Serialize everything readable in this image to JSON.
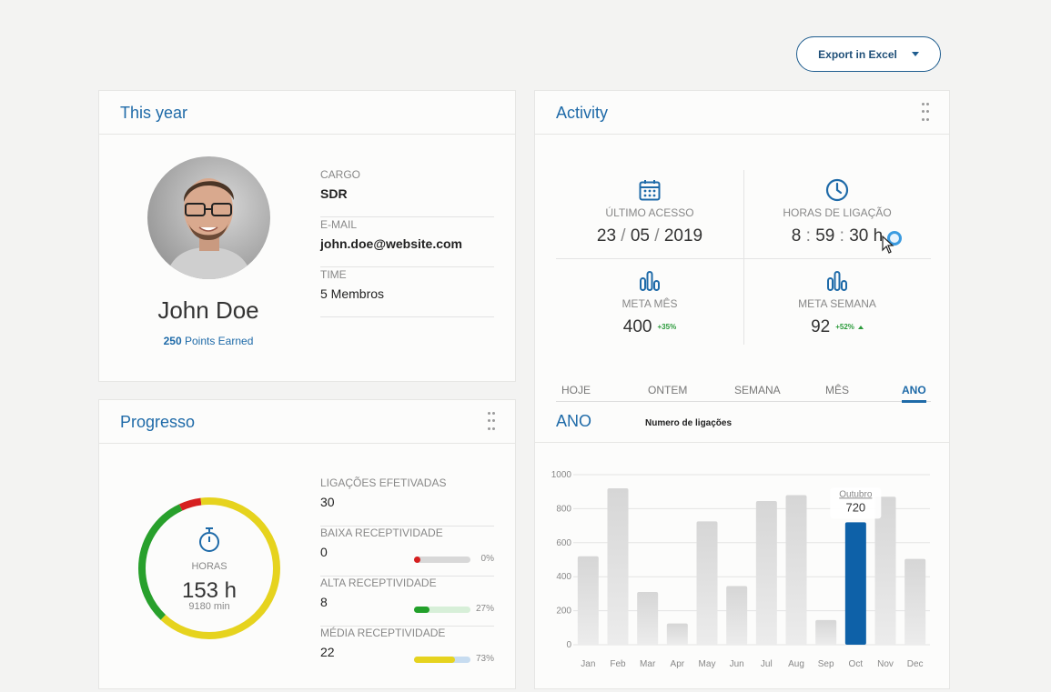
{
  "toolbar": {
    "export_label": "Export in Excel"
  },
  "profile": {
    "title": "This year",
    "name": "John Doe",
    "points_value": "250",
    "points_label": "Points Earned",
    "fields": [
      {
        "label": "CARGO",
        "value": "SDR"
      },
      {
        "label": "E-MAIL",
        "value": "john.doe@website.com"
      },
      {
        "label": "TIME",
        "value": "5 Membros"
      }
    ]
  },
  "activity": {
    "title": "Activity",
    "last_access": {
      "label": "ÚLTIMO ACESSO",
      "day": "23",
      "month": "05",
      "year": "2019",
      "sep": "/",
      "icon": "calendar-icon"
    },
    "call_hours": {
      "label": "HORAS DE LIGAÇÃO",
      "h": "8",
      "m": "59",
      "s": "30",
      "sep": ":",
      "unit": "h",
      "icon": "clock-icon"
    },
    "meta_month": {
      "label": "META MÊS",
      "value": "400",
      "change": "+35%",
      "icon": "bar-chart-icon"
    },
    "meta_week": {
      "label": "META SEMANA",
      "value": "92",
      "change": "+52%",
      "icon": "bar-chart-icon"
    },
    "tabs": [
      "HOJE",
      "ONTEM",
      "SEMANA",
      "MÊS",
      "ANO"
    ],
    "active_tab": "ANO",
    "chart_title": "ANO",
    "chart_subtitle": "Numero de ligações"
  },
  "chart_data": {
    "type": "bar",
    "title": "Numero de ligações",
    "categories": [
      "Jan",
      "Feb",
      "Mar",
      "Apr",
      "May",
      "Jun",
      "Jul",
      "Aug",
      "Sep",
      "Oct",
      "Nov",
      "Dec"
    ],
    "values": [
      520,
      920,
      310,
      125,
      725,
      345,
      845,
      880,
      145,
      720,
      870,
      505
    ],
    "highlight_index": 9,
    "highlight_color": "#0e61a8",
    "bar_color": "#dadada",
    "yticks": [
      0,
      200,
      400,
      600,
      800,
      1000
    ],
    "ylim": [
      0,
      1000
    ],
    "tooltip": {
      "label": "Outubro",
      "value": "720"
    }
  },
  "progress": {
    "title": "Progresso",
    "ring_label": "HORAS",
    "ring_value": "153 h",
    "ring_sub": "9180 min",
    "ring_segments": [
      {
        "color": "#e6d31e",
        "fraction": 0.62
      },
      {
        "color": "#28a02c",
        "fraction": 0.31
      },
      {
        "color": "#d61f1f",
        "fraction": 0.05
      },
      {
        "color": "#e6d31e",
        "fraction": 0.02
      }
    ],
    "items": [
      {
        "label": "LIGAÇÕES EFETIVADAS",
        "value": "30"
      },
      {
        "label": "BAIXA RECEPTIVIDADE",
        "value": "0",
        "percent": "0%",
        "fill": 0.0,
        "color": "#d61f1f",
        "track": "#d8d8d8"
      },
      {
        "label": "ALTA RECEPTIVIDADE",
        "value": "8",
        "percent": "27%",
        "fill": 0.27,
        "color": "#22a02a",
        "track": "#d7efd8"
      },
      {
        "label": "MÉDIA RECEPTIVIDADE",
        "value": "22",
        "percent": "73%",
        "fill": 0.73,
        "color": "#e6d31e",
        "track": "#c7dcf0"
      }
    ]
  }
}
